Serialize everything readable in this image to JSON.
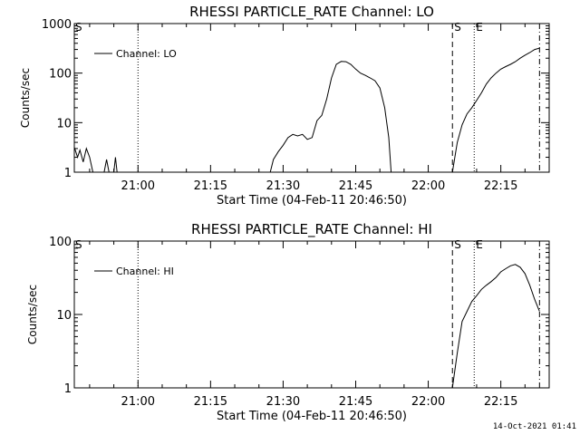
{
  "chart_data": [
    {
      "type": "line",
      "title": "RHESSI PARTICLE_RATE Channel: LO",
      "xlabel": "Start Time (04-Feb-11 20:46:50)",
      "ylabel": "Counts/sec",
      "xlim": [
        "20:46:50",
        "22:25:00"
      ],
      "ylim": [
        1,
        1000
      ],
      "log_y": true,
      "x_ticks": [
        "21:00",
        "21:15",
        "21:30",
        "21:45",
        "22:00",
        "22:15"
      ],
      "y_ticks": [
        "1",
        "10",
        "100",
        "1000"
      ],
      "legend": {
        "placement": "top-left",
        "entries": [
          "Channel: LO"
        ]
      },
      "markers": [
        {
          "label": "S",
          "time": "22:05:00",
          "style": "dashed"
        },
        {
          "label": "E",
          "time": "22:09:30",
          "style": "dotted"
        },
        {
          "label": "S",
          "time": "20:46:50",
          "style": "none"
        }
      ],
      "extra_lines": [
        {
          "time": "21:00:00",
          "style": "dotted"
        },
        {
          "time": "22:23:00",
          "style": "dash-dot"
        }
      ],
      "series": [
        {
          "name": "Channel: LO",
          "segments": [
            [
              [
                "20:46:50",
                3.2
              ],
              [
                "20:47:30",
                2.0
              ],
              [
                "20:48:00",
                2.8
              ],
              [
                "20:48:40",
                1.6
              ],
              [
                "20:49:20",
                3.0
              ],
              [
                "20:50:00",
                2.0
              ],
              [
                "20:50:40",
                1.0
              ]
            ],
            [
              [
                "20:53:00",
                1.0
              ],
              [
                "20:53:30",
                1.8
              ],
              [
                "20:54:00",
                1.0
              ]
            ],
            [
              [
                "20:55:00",
                1.0
              ],
              [
                "20:55:20",
                2.0
              ],
              [
                "20:55:40",
                1.0
              ]
            ],
            [
              [
                "21:27:20",
                1.0
              ],
              [
                "21:28:00",
                1.8
              ],
              [
                "21:29:00",
                2.6
              ],
              [
                "21:30:00",
                3.5
              ],
              [
                "21:31:00",
                5.0
              ],
              [
                "21:32:00",
                5.8
              ],
              [
                "21:33:00",
                5.4
              ],
              [
                "21:34:00",
                5.8
              ],
              [
                "21:35:00",
                4.6
              ],
              [
                "21:36:00",
                5.0
              ],
              [
                "21:37:00",
                11.0
              ],
              [
                "21:38:00",
                14.0
              ],
              [
                "21:39:00",
                30.0
              ],
              [
                "21:40:00",
                80.0
              ],
              [
                "21:41:00",
                150.0
              ],
              [
                "21:42:00",
                172.0
              ],
              [
                "21:43:00",
                170.0
              ],
              [
                "21:44:00",
                150.0
              ],
              [
                "21:45:00",
                120.0
              ],
              [
                "21:46:00",
                100.0
              ],
              [
                "21:47:00",
                90.0
              ],
              [
                "21:48:00",
                80.0
              ],
              [
                "21:49:00",
                70.0
              ],
              [
                "21:50:00",
                50.0
              ],
              [
                "21:51:00",
                20.0
              ],
              [
                "21:51:50",
                5.0
              ],
              [
                "21:52:20",
                1.0
              ]
            ],
            [
              [
                "22:05:00",
                1.0
              ],
              [
                "22:06:00",
                4.0
              ],
              [
                "22:07:00",
                9.0
              ],
              [
                "22:08:00",
                15.0
              ],
              [
                "22:09:00",
                20.0
              ],
              [
                "22:10:00",
                28.0
              ],
              [
                "22:11:00",
                40.0
              ],
              [
                "22:12:00",
                60.0
              ],
              [
                "22:13:00",
                80.0
              ],
              [
                "22:14:00",
                100.0
              ],
              [
                "22:15:00",
                120.0
              ],
              [
                "22:16:00",
                135.0
              ],
              [
                "22:17:00",
                150.0
              ],
              [
                "22:18:00",
                170.0
              ],
              [
                "22:19:00",
                200.0
              ],
              [
                "22:20:00",
                230.0
              ],
              [
                "22:21:00",
                260.0
              ],
              [
                "22:22:00",
                300.0
              ],
              [
                "22:23:00",
                320.0
              ]
            ]
          ]
        }
      ]
    },
    {
      "type": "line",
      "title": "RHESSI PARTICLE_RATE Channel: HI",
      "xlabel": "Start Time (04-Feb-11 20:46:50)",
      "ylabel": "Counts/sec",
      "xlim": [
        "20:46:50",
        "22:25:00"
      ],
      "ylim": [
        1,
        100
      ],
      "log_y": true,
      "x_ticks": [
        "21:00",
        "21:15",
        "21:30",
        "21:45",
        "22:00",
        "22:15"
      ],
      "y_ticks": [
        "1",
        "10",
        "100"
      ],
      "legend": {
        "placement": "top-left",
        "entries": [
          "Channel: HI"
        ]
      },
      "markers": [
        {
          "label": "S",
          "time": "22:05:00",
          "style": "dashed"
        },
        {
          "label": "E",
          "time": "22:09:30",
          "style": "dotted"
        },
        {
          "label": "S",
          "time": "20:46:50",
          "style": "none"
        }
      ],
      "extra_lines": [
        {
          "time": "21:00:00",
          "style": "dotted"
        },
        {
          "time": "22:23:00",
          "style": "dash-dot"
        }
      ],
      "series": [
        {
          "name": "Channel: HI",
          "segments": [
            [
              [
                "22:05:00",
                1.0
              ],
              [
                "22:06:00",
                3.0
              ],
              [
                "22:07:00",
                8.0
              ],
              [
                "22:08:00",
                11.0
              ],
              [
                "22:09:00",
                15.0
              ],
              [
                "22:10:00",
                18.0
              ],
              [
                "22:11:00",
                22.0
              ],
              [
                "22:12:00",
                25.0
              ],
              [
                "22:13:00",
                28.0
              ],
              [
                "22:14:00",
                32.0
              ],
              [
                "22:15:00",
                38.0
              ],
              [
                "22:16:00",
                42.0
              ],
              [
                "22:17:00",
                46.0
              ],
              [
                "22:18:00",
                48.0
              ],
              [
                "22:19:00",
                44.0
              ],
              [
                "22:20:00",
                36.0
              ],
              [
                "22:21:00",
                25.0
              ],
              [
                "22:22:00",
                16.0
              ],
              [
                "22:23:00",
                11.0
              ]
            ]
          ]
        }
      ]
    }
  ],
  "footer": {
    "timestamp": "14-Oct-2021 01:41"
  }
}
